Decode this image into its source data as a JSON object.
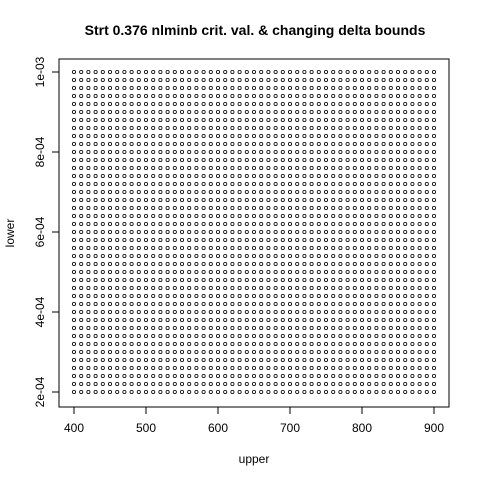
{
  "chart_data": {
    "type": "scatter",
    "title": "Strt 0.376 nlminb crit. val. & changing delta bounds",
    "xlabel": "upper",
    "ylabel": "lower",
    "x_range": [
      400,
      900
    ],
    "x_step": 10,
    "y_range": [
      0.0002,
      0.001
    ],
    "y_step": 2e-05,
    "xlim": [
      400,
      900
    ],
    "ylim": [
      0.0002,
      0.001
    ],
    "x_ticks": [
      400,
      500,
      600,
      700,
      800,
      900
    ],
    "x_tick_labels": [
      "400",
      "500",
      "600",
      "700",
      "800",
      "900"
    ],
    "y_ticks": [
      0.0002,
      0.0004,
      0.0006,
      0.0008,
      0.001
    ],
    "y_tick_labels": [
      "2e-04",
      "4e-04",
      "6e-04",
      "8e-04",
      "1e-03"
    ],
    "grid": false,
    "legend": "none",
    "point_color": "#000000"
  }
}
